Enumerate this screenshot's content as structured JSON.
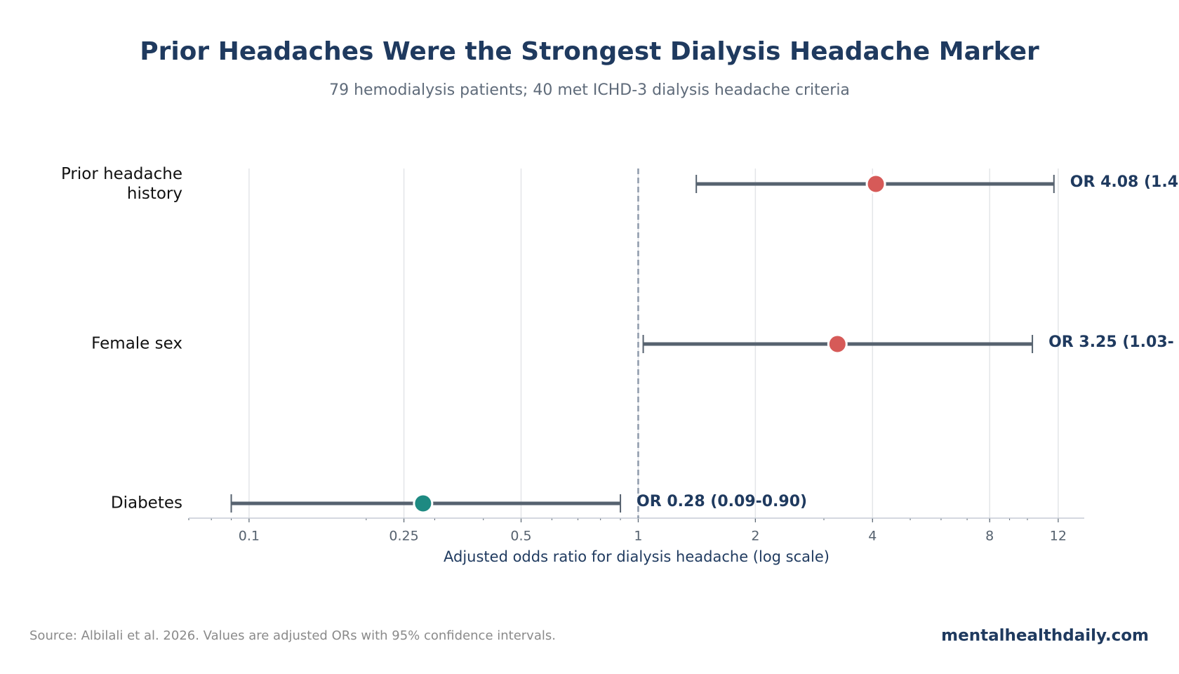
{
  "chart_data": {
    "type": "forest",
    "title": "Prior Headaches Were the Strongest Dialysis Headache Marker",
    "subtitle": "79 hemodialysis patients; 40 met ICHD-3 dialysis headache criteria",
    "x_label": "Adjusted odds ratio for dialysis headache (log scale)",
    "categories": [
      "Prior headache\nhistory",
      "Female sex",
      "Diabetes"
    ],
    "values": [
      4.08,
      3.25,
      0.28
    ],
    "ci_low": [
      1.41,
      1.03,
      0.09
    ],
    "ci_high": [
      11.7,
      10.3,
      0.9
    ],
    "value_labels": [
      "OR 4.08 (1.4",
      "OR 3.25 (1.03-",
      "OR 0.28 (0.09-0.90)"
    ],
    "colors": [
      "#d65a58",
      "#d65a58",
      "#1e8a82"
    ],
    "whisker_color": "#56626f",
    "reference_line": 1,
    "log_scale": true,
    "grid": true,
    "xlim": [
      0.07,
      14
    ],
    "xticks": [
      0.1,
      0.25,
      0.5,
      1,
      2,
      4,
      8,
      12
    ],
    "source": "Source: Albilali et al. 2026. Values are adjusted ORs with 95% confidence intervals.",
    "brand": "mentalhealthdaily.com"
  }
}
